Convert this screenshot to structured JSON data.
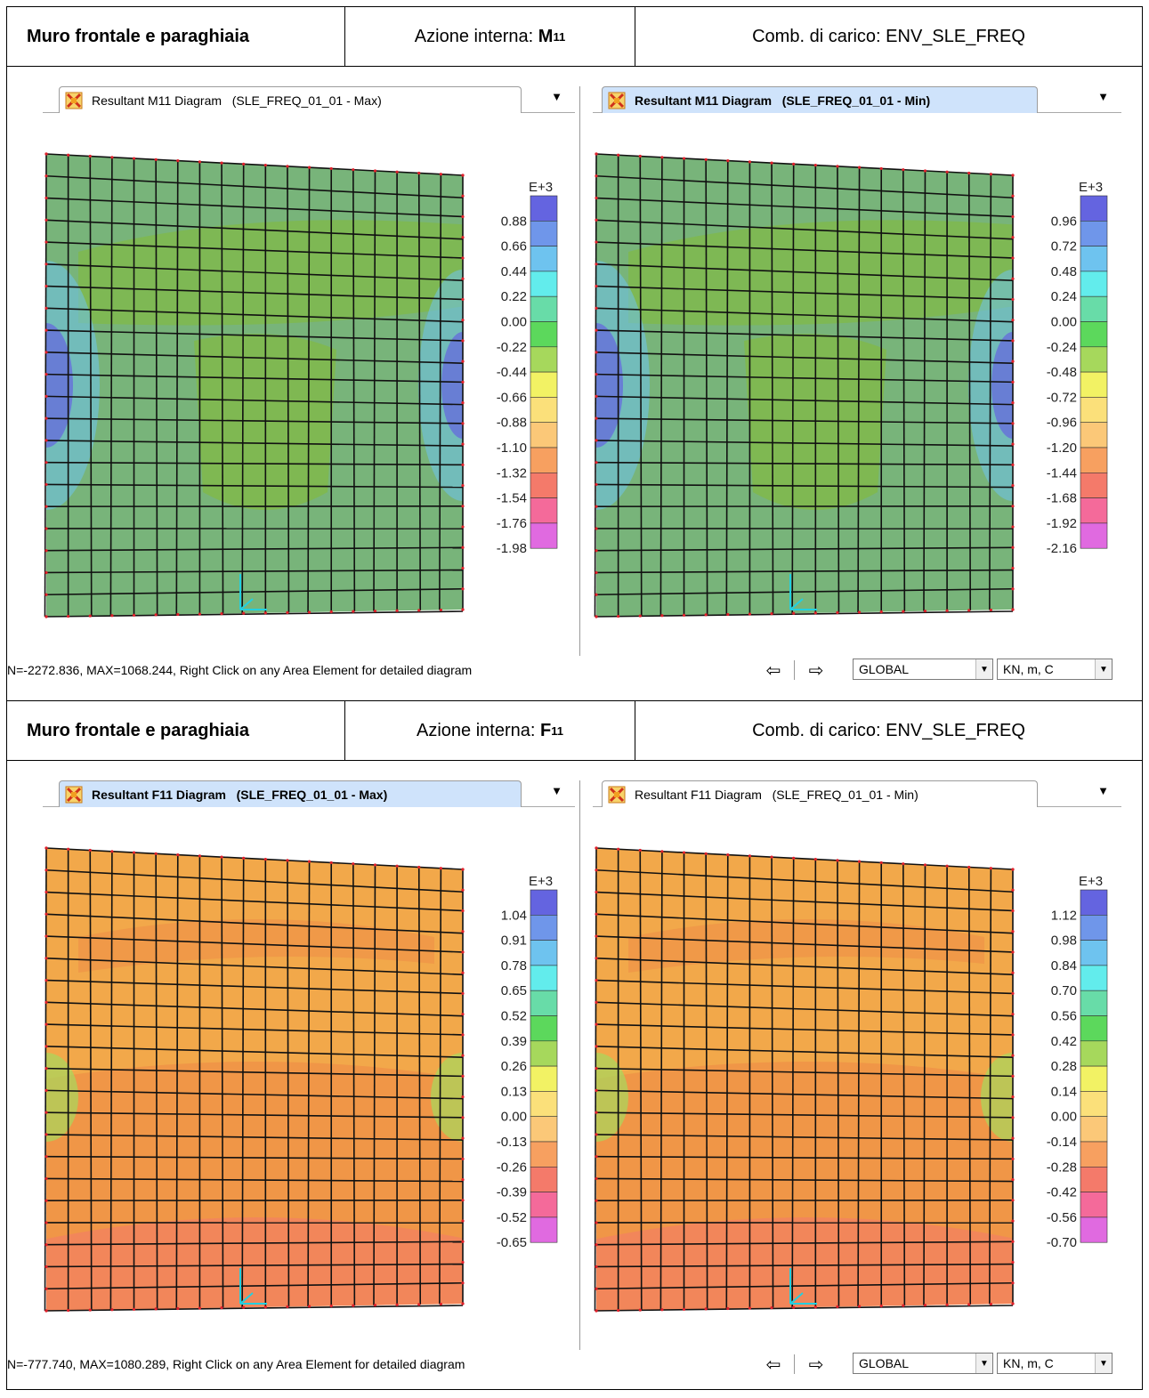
{
  "sections": [
    {
      "header": {
        "element": "Muro frontale e paraghiaia",
        "action_label": "Azione interna:",
        "action_symbol": "M",
        "action_sub": "11",
        "combo": "Comb. di carico: ENV_SLE_FREQ"
      },
      "panels": [
        {
          "tab_label": "Resultant M11 Diagram   (SLE_FREQ_01_01 - Max)",
          "active": false,
          "legend_exp": "E+3",
          "legend_values": [
            "0.88",
            "0.66",
            "0.44",
            "0.22",
            "0.00",
            "-0.22",
            "-0.44",
            "-0.66",
            "-0.88",
            "-1.10",
            "-1.32",
            "-1.54",
            "-1.76",
            "-1.98"
          ]
        },
        {
          "tab_label": "Resultant M11 Diagram   (SLE_FREQ_01_01 - Min)",
          "active": true,
          "legend_exp": "E+3",
          "legend_values": [
            "0.96",
            "0.72",
            "0.48",
            "0.24",
            "0.00",
            "-0.24",
            "-0.48",
            "-0.72",
            "-0.96",
            "-1.20",
            "-1.44",
            "-1.68",
            "-1.92",
            "-2.16"
          ]
        }
      ],
      "status": {
        "text": "N=-2272.836, MAX=1068.244, Right Click on any Area Element for detailed diagram",
        "coord": "GLOBAL",
        "units": "KN, m, C"
      }
    },
    {
      "header": {
        "element": "Muro frontale e paraghiaia",
        "action_label": "Azione interna:",
        "action_symbol": "F",
        "action_sub": "11",
        "combo": "Comb. di carico: ENV_SLE_FREQ"
      },
      "panels": [
        {
          "tab_label": "Resultant F11 Diagram   (SLE_FREQ_01_01 - Max)",
          "active": true,
          "legend_exp": "E+3",
          "legend_values": [
            "1.04",
            "0.91",
            "0.78",
            "0.65",
            "0.52",
            "0.39",
            "0.26",
            "0.13",
            "0.00",
            "-0.13",
            "-0.26",
            "-0.39",
            "-0.52",
            "-0.65"
          ]
        },
        {
          "tab_label": "Resultant F11 Diagram   (SLE_FREQ_01_01 - Min)",
          "active": false,
          "legend_exp": "E+3",
          "legend_values": [
            "1.12",
            "0.98",
            "0.84",
            "0.70",
            "0.56",
            "0.42",
            "0.28",
            "0.14",
            "0.00",
            "-0.14",
            "-0.28",
            "-0.42",
            "-0.56",
            "-0.70"
          ]
        }
      ],
      "status": {
        "text": "N=-777.740, MAX=1080.289, Right Click on any Area Element for detailed diagram",
        "coord": "GLOBAL",
        "units": "KN, m, C"
      }
    }
  ],
  "colors": {
    "scale": [
      "#6464e0",
      "#6f96ea",
      "#6ec3ef",
      "#62ecec",
      "#68dca8",
      "#5cd85c",
      "#a6d85c",
      "#f2f264",
      "#fbe07a",
      "#fbc878",
      "#f7a060",
      "#f47a6a",
      "#f46a9a",
      "#e06ae0"
    ],
    "m11_field": "#78b47a",
    "m11_field_dark": "#7fb84e",
    "f11_field": "#f2a84a",
    "f11_field_dark": "#ee8a46"
  }
}
